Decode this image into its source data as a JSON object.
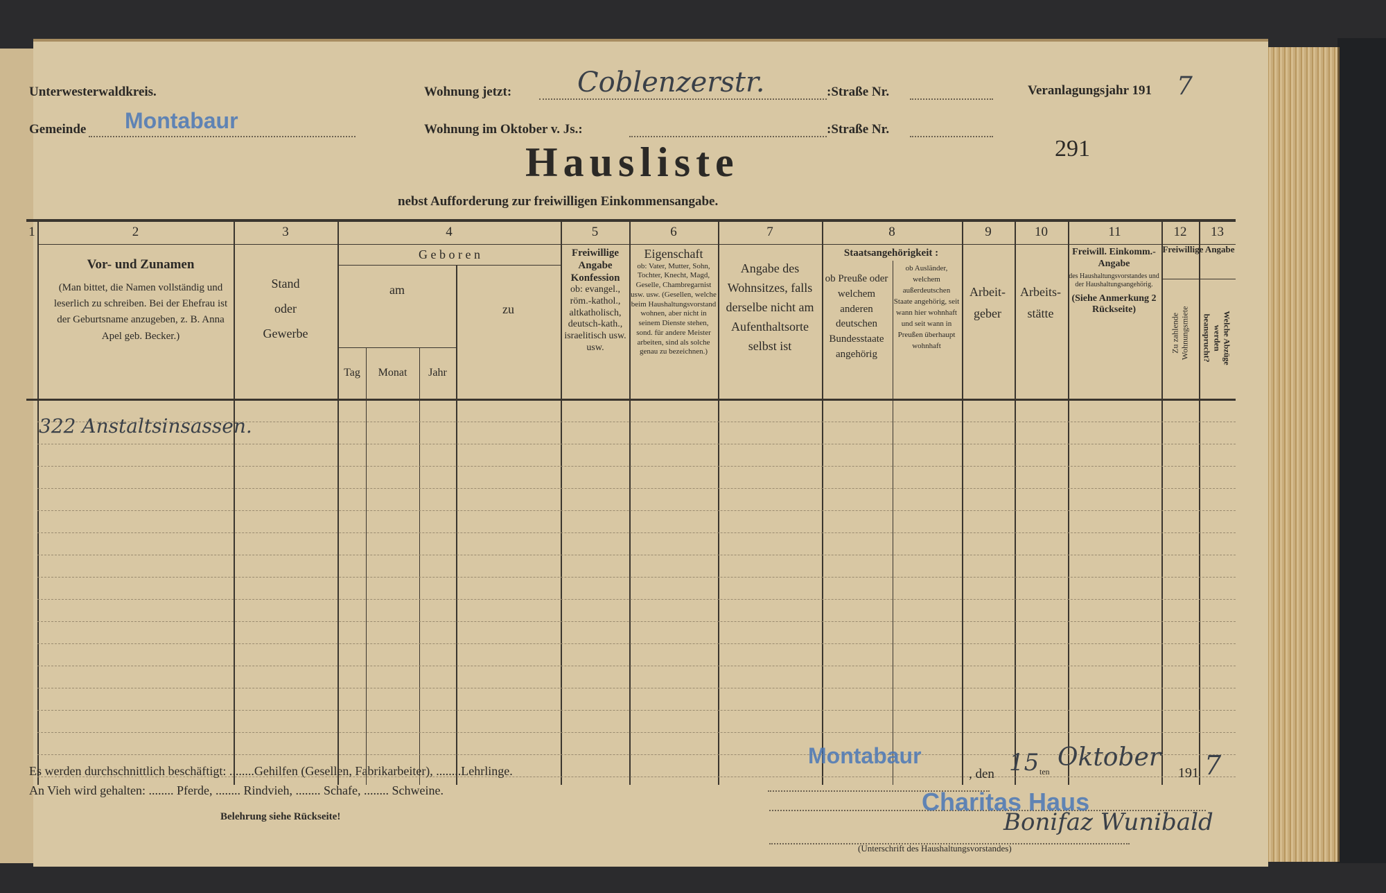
{
  "form": {
    "district": "Unterwesterwaldkreis.",
    "municipality_label": "Gemeinde",
    "municipality_value": "Montabaur",
    "residence_now_label": "Wohnung jetzt:",
    "residence_now_value": "Coblenzerstr.",
    "street_no_label": ":Straße Nr.",
    "residence_october_label": "Wohnung im Oktober v. Js.:",
    "street_no_label_2": ":Straße Nr.",
    "assessment_year_label": "Veranlagungsjahr 191",
    "assessment_year_value": "7",
    "list_number": "291",
    "title": "Hausliste",
    "subtitle": "nebst Aufforderung zur freiwilligen Einkommensangabe."
  },
  "table": {
    "column_numbers": [
      "1",
      "2",
      "3",
      "4",
      "5",
      "6",
      "7",
      "8",
      "9",
      "10",
      "11",
      "12",
      "13"
    ],
    "headers": {
      "c2_title": "Vor- und Zunamen",
      "c2_note": "(Man bittet, die Namen vollständig und leserlich zu schreiben. Bei der Ehefrau ist der Geburtsname anzugeben, z. B. Anna Apel geb. Becker.)",
      "c3_line1": "Stand",
      "c3_line2": "oder",
      "c3_line3": "Gewerbe",
      "c4_title": "G e b o r e n",
      "c4_am": "am",
      "c4_tag": "Tag",
      "c4_monat": "Monat",
      "c4_jahr": "Jahr",
      "c4_zu": "zu",
      "c5_title": "Freiwillige Angabe Konfession",
      "c5_note": "ob: evangel., röm.-kathol., altkatholisch, deutsch-kath., israelitisch usw. usw.",
      "c6_title": "Eigenschaft",
      "c6_note": "ob: Vater, Mutter, Sohn, Tochter, Knecht, Magd, Geselle, Chambregarnist usw. usw. (Gesellen, welche beim Haushaltungsvorstand wohnen, aber nicht in seinem Dienste stehen, sond. für andere Meister arbeiten, sind als solche genau zu bezeichnen.)",
      "c7_note": "Angabe des Wohnsitzes, falls derselbe nicht am Aufenthaltsorte selbst ist",
      "c8_title": "Staatsangehörigkeit :",
      "c8a_note": "ob Preuße oder welchem anderen deutschen Bundesstaate angehörig",
      "c8b_note": "ob Ausländer, welchem außerdeutschen Staate angehörig, seit wann hier wohnhaft und seit wann in Preußen überhaupt wohnhaft",
      "c9_line1": "Arbeit-",
      "c9_line2": "geber",
      "c10_line1": "Arbeits-",
      "c10_line2": "stätte",
      "c11_title": "Freiwill. Einkomm.-Angabe",
      "c11_note": "des Haushaltungsvorstandes und der Haushaltungsangehörig.",
      "c11_ref": "(Siehe Anmerkung 2 Rückseite)",
      "c1213_title": "Freiwillige Angabe",
      "c12_note": "Zu zahlende Wohnungsmiete",
      "c13_note": "Welche Abzüge werden beansprucht?"
    },
    "entries": [
      {
        "name": "322 Anstaltsinsassen."
      }
    ]
  },
  "footer": {
    "employees_line": "Es werden durchschnittlich beschäftigt: ........Gehilfen (Gesellen, Fabrikarbeiter), ........Lehrlinge.",
    "livestock_line": "An Vieh wird gehalten: ........ Pferde, ........ Rindvieh, ........ Schafe, ........ Schweine.",
    "instruction": "Belehrung siehe Rückseite!",
    "place_stamp": "Montabaur",
    "den_label": ", den",
    "day": "15",
    "day_suffix": "ten",
    "month": "Oktober",
    "year_prefix": "191",
    "year_value": "7",
    "signature_stamp": "Charitas Haus",
    "signature": "Bonifaz Wunibald",
    "signature_label": "(Unterschrift des Haushaltungsvorstandes)"
  },
  "colors": {
    "paper": "#d8c7a3",
    "ink": "#2b2926",
    "stamp_blue": "#4a78b8",
    "handwriting": "#3a4048"
  }
}
